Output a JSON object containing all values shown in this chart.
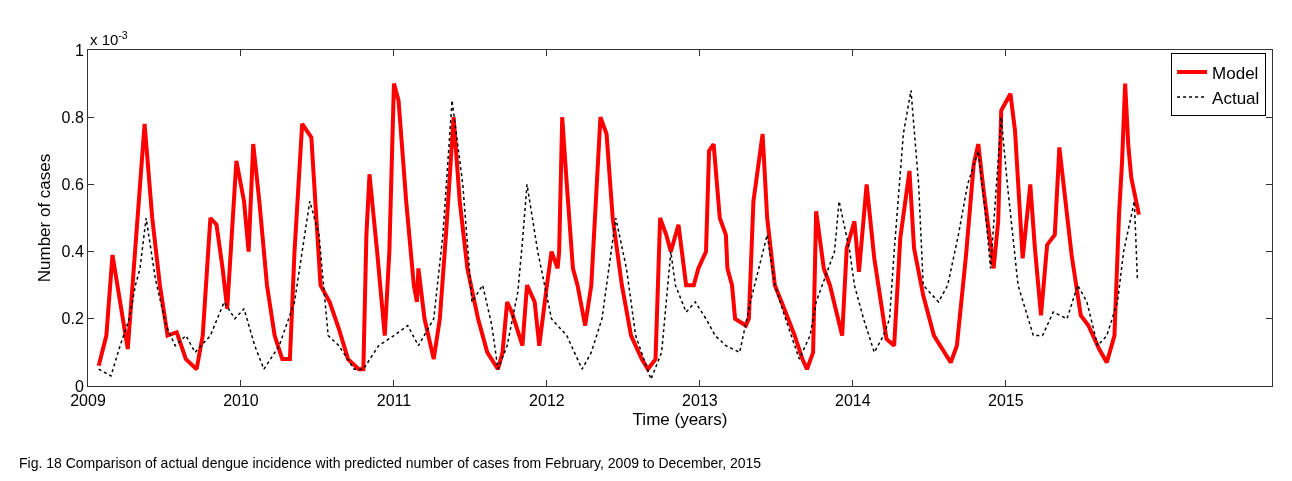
{
  "chart_data": {
    "type": "line",
    "xlabel": "Time (years)",
    "ylabel": "Number of cases",
    "annotations": [
      "x 10$^{-3}$",
      "Fig. 18 Comparison of actual dengue incidence with predicted number of cases from February, 2009 to December, 2015"
    ],
    "xlim": [
      2009,
      2016.74
    ],
    "xticks": [
      2009,
      2010,
      2011,
      2012,
      2013,
      2014,
      2015
    ],
    "ylim": [
      0,
      1
    ],
    "yticks": [
      0,
      0.2,
      0.4,
      0.6,
      0.8,
      1
    ],
    "legend": "top right",
    "marker": "none",
    "series": [
      {
        "name": "Model",
        "color": "#ff0000",
        "line_style": "solid",
        "x": [
          2009.07,
          2009.12,
          2009.16,
          2009.26,
          2009.37,
          2009.42,
          2009.47,
          2009.52,
          2009.58,
          2009.64,
          2009.71,
          2009.75,
          2009.8,
          2009.84,
          2009.88,
          2009.91,
          2009.97,
          2010.02,
          2010.05,
          2010.08,
          2010.12,
          2010.17,
          2010.22,
          2010.27,
          2010.32,
          2010.35,
          2010.4,
          2010.46,
          2010.52,
          2010.58,
          2010.64,
          2010.7,
          2010.77,
          2010.8,
          2010.82,
          2010.84,
          2010.89,
          2010.94,
          2010.97,
          2011.0,
          2011.03,
          2011.08,
          2011.13,
          2011.15,
          2011.16,
          2011.2,
          2011.26,
          2011.3,
          2011.34,
          2011.39,
          2011.43,
          2011.48,
          2011.55,
          2011.61,
          2011.68,
          2011.71,
          2011.74,
          2011.77,
          2011.84,
          2011.87,
          2011.92,
          2011.95,
          2012.0,
          2012.03,
          2012.07,
          2012.08,
          2012.1,
          2012.13,
          2012.17,
          2012.2,
          2012.25,
          2012.29,
          2012.35,
          2012.39,
          2012.43,
          2012.49,
          2012.55,
          2012.62,
          2012.66,
          2012.71,
          2012.74,
          2012.78,
          2012.81,
          2012.86,
          2012.91,
          2012.96,
          2012.99,
          2013.04,
          2013.06,
          2013.09,
          2013.13,
          2013.17,
          2013.18,
          2013.21,
          2013.23,
          2013.3,
          2013.32,
          2013.35,
          2013.41,
          2013.44,
          2013.49,
          2013.56,
          2013.62,
          2013.67,
          2013.7,
          2013.74,
          2013.76,
          2013.81,
          2013.85,
          2013.93,
          2013.96,
          2014.01,
          2014.04,
          2014.09,
          2014.14,
          2014.22,
          2014.27,
          2014.31,
          2014.37,
          2014.4,
          2014.46,
          2014.53,
          2014.64,
          2014.68,
          2014.74,
          2014.79,
          2014.82,
          2014.85,
          2014.92,
          2014.95,
          2014.97,
          2015.03,
          2015.06,
          2015.11,
          2015.16,
          2015.19,
          2015.23,
          2015.27,
          2015.32,
          2015.35,
          2015.39,
          2015.43,
          2015.49,
          2015.54,
          2015.61,
          2015.66,
          2015.71,
          2015.74,
          2015.76,
          2015.78,
          2015.8,
          2015.82,
          2015.87
        ],
        "values": [
          0.06,
          0.15,
          0.39,
          0.11,
          0.78,
          0.5,
          0.3,
          0.15,
          0.16,
          0.08,
          0.05,
          0.15,
          0.5,
          0.48,
          0.35,
          0.23,
          0.67,
          0.55,
          0.4,
          0.72,
          0.55,
          0.3,
          0.15,
          0.08,
          0.08,
          0.4,
          0.78,
          0.74,
          0.3,
          0.25,
          0.17,
          0.08,
          0.05,
          0.05,
          0.45,
          0.63,
          0.4,
          0.15,
          0.4,
          0.9,
          0.85,
          0.55,
          0.3,
          0.25,
          0.35,
          0.2,
          0.08,
          0.2,
          0.45,
          0.8,
          0.55,
          0.35,
          0.2,
          0.1,
          0.05,
          0.1,
          0.25,
          0.22,
          0.12,
          0.3,
          0.25,
          0.12,
          0.3,
          0.4,
          0.35,
          0.4,
          0.8,
          0.6,
          0.35,
          0.3,
          0.18,
          0.3,
          0.8,
          0.75,
          0.5,
          0.3,
          0.15,
          0.08,
          0.05,
          0.08,
          0.5,
          0.45,
          0.4,
          0.48,
          0.3,
          0.3,
          0.35,
          0.4,
          0.7,
          0.72,
          0.5,
          0.45,
          0.35,
          0.3,
          0.2,
          0.18,
          0.2,
          0.55,
          0.75,
          0.5,
          0.3,
          0.22,
          0.15,
          0.08,
          0.05,
          0.1,
          0.52,
          0.35,
          0.3,
          0.15,
          0.41,
          0.49,
          0.34,
          0.6,
          0.38,
          0.14,
          0.12,
          0.44,
          0.64,
          0.41,
          0.27,
          0.15,
          0.07,
          0.12,
          0.39,
          0.66,
          0.72,
          0.6,
          0.35,
          0.49,
          0.82,
          0.87,
          0.76,
          0.38,
          0.6,
          0.41,
          0.21,
          0.42,
          0.45,
          0.71,
          0.55,
          0.39,
          0.21,
          0.18,
          0.11,
          0.07,
          0.15,
          0.51,
          0.67,
          0.9,
          0.72,
          0.62,
          0.51
        ]
      },
      {
        "name": "Actual",
        "color": "#000000",
        "line_style": "dotted",
        "x": [
          2009.07,
          2009.15,
          2009.21,
          2009.27,
          2009.31,
          2009.34,
          2009.38,
          2009.44,
          2009.51,
          2009.57,
          2009.64,
          2009.7,
          2009.8,
          2009.89,
          2009.96,
          2010.02,
          2010.09,
          2010.15,
          2010.25,
          2010.35,
          2010.45,
          2010.51,
          2010.57,
          2010.64,
          2010.74,
          2010.8,
          2010.9,
          2011.0,
          2011.09,
          2011.16,
          2011.26,
          2011.32,
          2011.38,
          2011.45,
          2011.51,
          2011.58,
          2011.64,
          2011.68,
          2011.74,
          2011.81,
          2011.84,
          2011.87,
          2011.94,
          2012.03,
          2012.13,
          2012.23,
          2012.29,
          2012.36,
          2012.45,
          2012.52,
          2012.58,
          2012.68,
          2012.75,
          2012.81,
          2012.84,
          2012.91,
          2012.97,
          2013.04,
          2013.1,
          2013.17,
          2013.26,
          2013.33,
          2013.44,
          2013.49,
          2013.56,
          2013.65,
          2013.72,
          2013.76,
          2013.88,
          2013.91,
          2013.98,
          2014.01,
          2014.07,
          2014.14,
          2014.2,
          2014.24,
          2014.27,
          2014.33,
          2014.38,
          2014.43,
          2014.46,
          2014.56,
          2014.62,
          2014.69,
          2014.75,
          2014.82,
          2014.87,
          2014.9,
          2014.97,
          2015.01,
          2015.08,
          2015.18,
          2015.24,
          2015.31,
          2015.4,
          2015.47,
          2015.53,
          2015.6,
          2015.66,
          2015.73,
          2015.77,
          2015.84,
          2015.86
        ],
        "values": [
          0.05,
          0.03,
          0.12,
          0.2,
          0.3,
          0.35,
          0.5,
          0.32,
          0.18,
          0.12,
          0.15,
          0.1,
          0.15,
          0.25,
          0.2,
          0.23,
          0.12,
          0.05,
          0.12,
          0.25,
          0.55,
          0.45,
          0.15,
          0.12,
          0.05,
          0.05,
          0.12,
          0.15,
          0.18,
          0.12,
          0.2,
          0.45,
          0.85,
          0.6,
          0.25,
          0.3,
          0.18,
          0.05,
          0.12,
          0.28,
          0.43,
          0.6,
          0.4,
          0.2,
          0.15,
          0.05,
          0.1,
          0.2,
          0.5,
          0.35,
          0.15,
          0.02,
          0.1,
          0.4,
          0.3,
          0.22,
          0.25,
          0.2,
          0.15,
          0.12,
          0.1,
          0.25,
          0.45,
          0.3,
          0.2,
          0.08,
          0.15,
          0.25,
          0.4,
          0.55,
          0.4,
          0.3,
          0.2,
          0.1,
          0.15,
          0.2,
          0.4,
          0.75,
          0.88,
          0.6,
          0.3,
          0.25,
          0.3,
          0.45,
          0.6,
          0.7,
          0.5,
          0.35,
          0.8,
          0.6,
          0.3,
          0.15,
          0.15,
          0.22,
          0.2,
          0.3,
          0.25,
          0.12,
          0.15,
          0.25,
          0.4,
          0.55,
          0.32
        ]
      }
    ]
  }
}
